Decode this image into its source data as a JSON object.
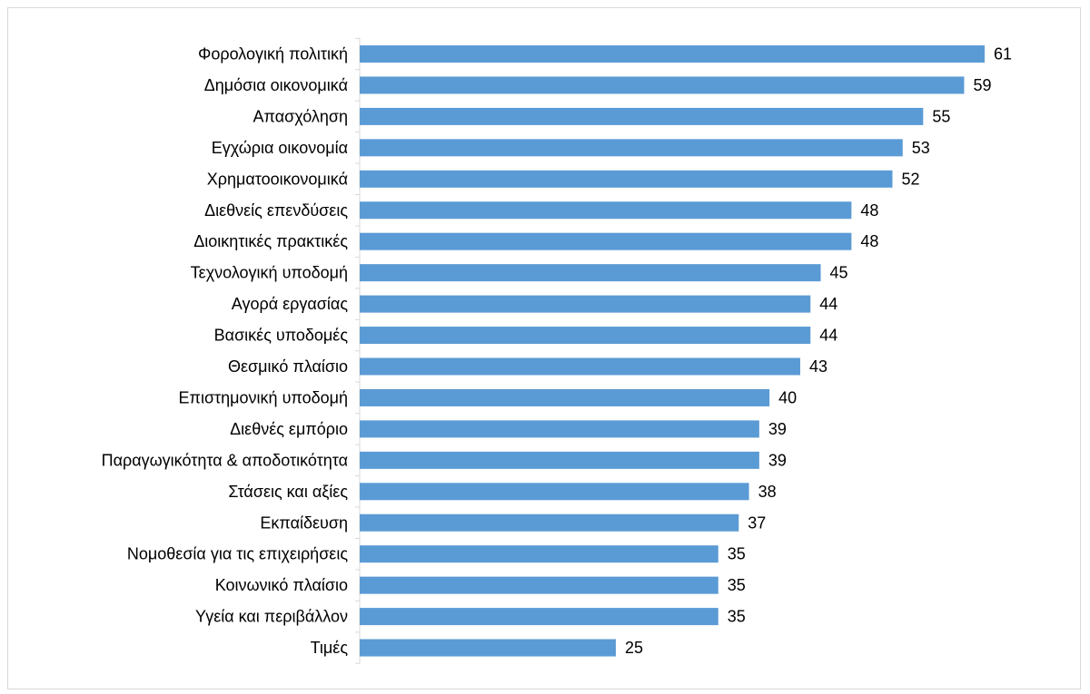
{
  "chart_data": {
    "type": "bar",
    "orientation": "horizontal",
    "categories": [
      "Φορολογική πολιτική",
      "Δημόσια οικονομικά",
      "Απασχόληση",
      "Εγχώρια οικονομία",
      "Χρηματοοικονομικά",
      "Διεθνείς επενδύσεις",
      "Διοικητικές πρακτικές",
      "Τεχνολογική υποδομή",
      "Αγορά εργασίας",
      "Βασικές υποδομές",
      "Θεσμικό πλαίσιο",
      "Επιστημονική υποδομή",
      "Διεθνές εμπόριο",
      "Παραγωγικότητα & αποδοτικότητα",
      "Στάσεις και αξίες",
      "Εκπαίδευση",
      "Νομοθεσία για τις επιχειρήσεις",
      "Κοινωνικό πλαίσιο",
      "Υγεία και περιβάλλον",
      "Τιμές"
    ],
    "values": [
      61,
      59,
      55,
      53,
      52,
      48,
      48,
      45,
      44,
      44,
      43,
      40,
      39,
      39,
      38,
      37,
      35,
      35,
      35,
      25
    ],
    "xlim": [
      0,
      61
    ],
    "bar_color": "#5b9bd5",
    "data_labels": true,
    "grid": false,
    "legend": "none"
  }
}
